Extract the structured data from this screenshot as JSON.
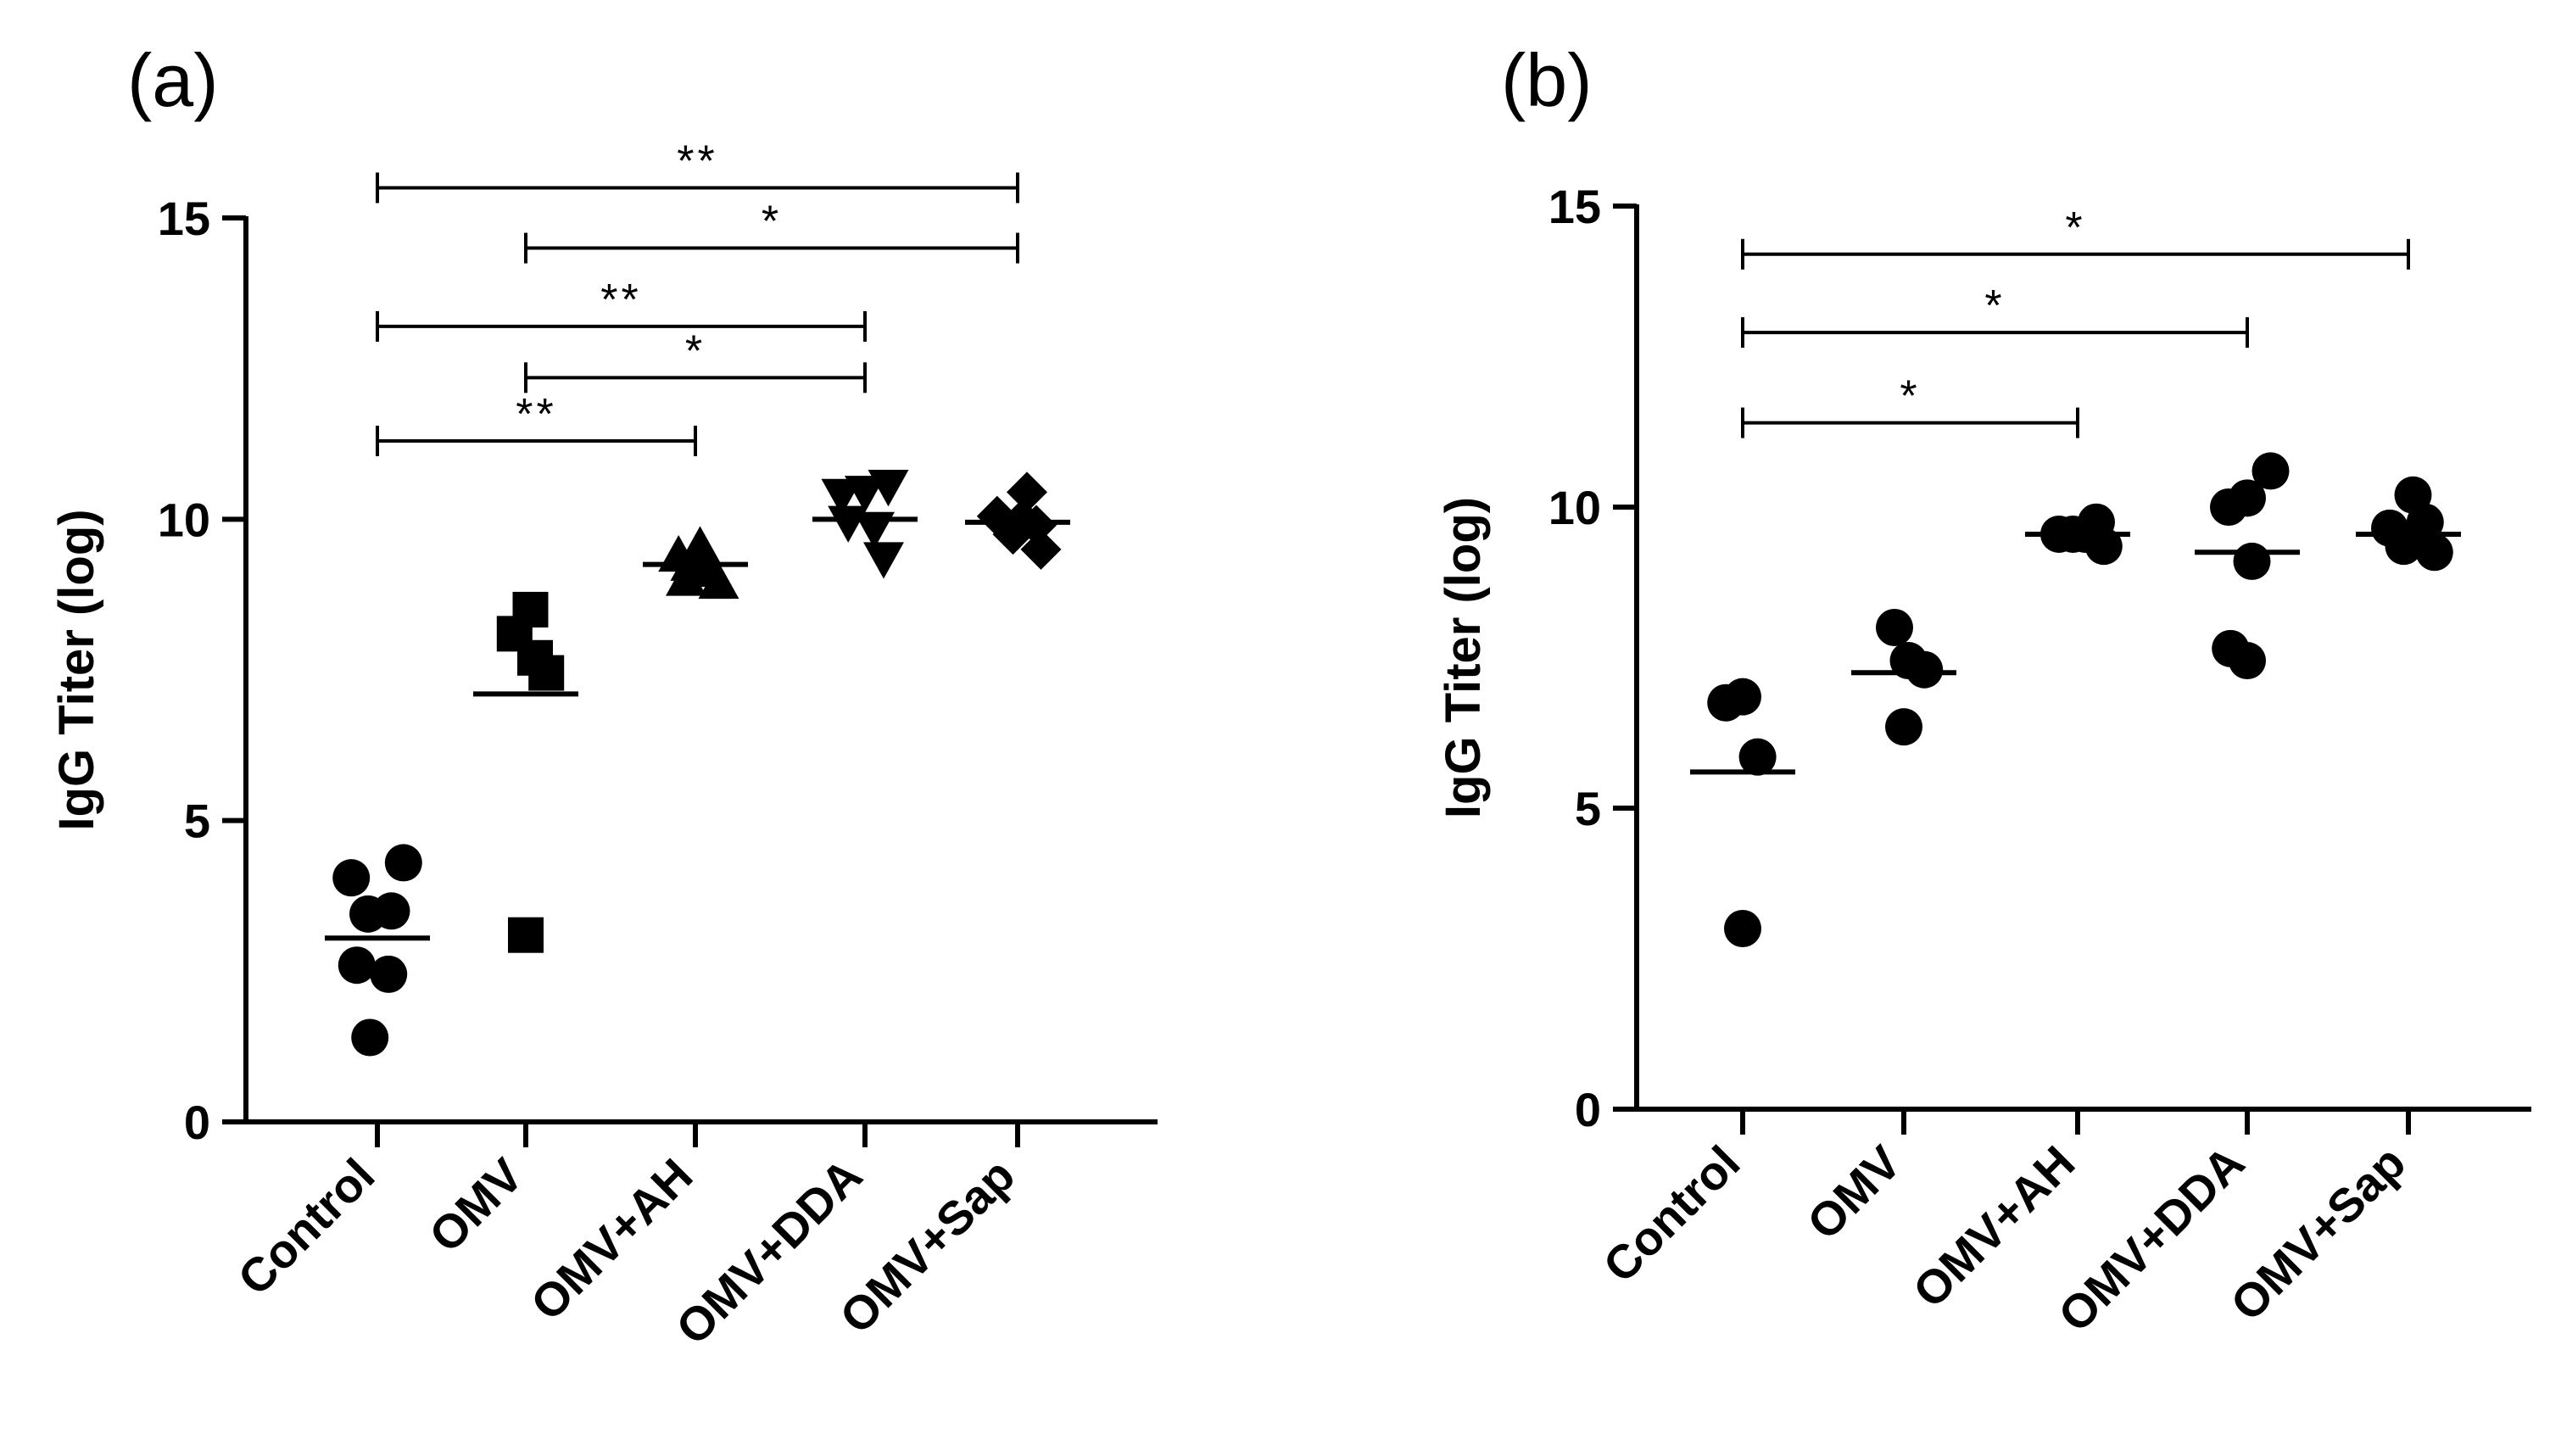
{
  "chart_data": [
    {
      "panel": "(a)",
      "type": "scatter",
      "ylabel": "IgG Titer (log)",
      "ylim": [
        0,
        15
      ],
      "yticks": [
        "0",
        "5",
        "10",
        "15"
      ],
      "categories": [
        "Control",
        "OMV",
        "OMV+AH",
        "OMV+DDA",
        "OMV+Sap"
      ],
      "groups": [
        {
          "name": "Control",
          "marker": "circle",
          "mean": 3.05,
          "points": [
            [
              -0.28,
              4.05
            ],
            [
              0.28,
              4.3
            ],
            [
              -0.1,
              3.45
            ],
            [
              0.15,
              3.5
            ],
            [
              -0.22,
              2.6
            ],
            [
              0.12,
              2.45
            ],
            [
              -0.08,
              1.4
            ]
          ]
        },
        {
          "name": "OMV",
          "marker": "square",
          "mean": 7.1,
          "points": [
            [
              -0.12,
              8.1
            ],
            [
              0.05,
              8.5
            ],
            [
              0.1,
              7.7
            ],
            [
              0.22,
              7.45
            ],
            [
              0.0,
              3.1
            ]
          ]
        },
        {
          "name": "OMV+AH",
          "marker": "triangle-up",
          "mean": 9.25,
          "points": [
            [
              -0.18,
              9.4
            ],
            [
              -0.05,
              9.25
            ],
            [
              0.05,
              9.55
            ],
            [
              0.15,
              9.15
            ],
            [
              0.25,
              8.95
            ],
            [
              -0.1,
              9.0
            ]
          ]
        },
        {
          "name": "OMV+DDA",
          "marker": "triangle-down",
          "mean": 10.0,
          "points": [
            [
              -0.25,
              10.4
            ],
            [
              0.0,
              10.45
            ],
            [
              0.25,
              10.55
            ],
            [
              -0.18,
              9.95
            ],
            [
              0.1,
              9.85
            ],
            [
              0.2,
              9.35
            ]
          ]
        },
        {
          "name": "OMV+Sap",
          "marker": "diamond",
          "mean": 9.95,
          "points": [
            [
              -0.22,
              10.05
            ],
            [
              0.1,
              10.45
            ],
            [
              0.05,
              10.0
            ],
            [
              0.2,
              9.9
            ],
            [
              -0.05,
              9.75
            ],
            [
              0.25,
              9.5
            ]
          ]
        }
      ],
      "comparisons": [
        {
          "from": "Control",
          "to": "OMV+Sap",
          "level": 15.5,
          "label": "**"
        },
        {
          "from": "OMV",
          "to": "OMV+Sap",
          "level": 14.5,
          "label": "*"
        },
        {
          "from": "Control",
          "to": "OMV+DDA",
          "level": 13.2,
          "label": "**"
        },
        {
          "from": "OMV",
          "to": "OMV+DDA",
          "level": 12.35,
          "label": "*"
        },
        {
          "from": "Control",
          "to": "OMV+AH",
          "level": 11.3,
          "label": "**"
        }
      ]
    },
    {
      "panel": "(b)",
      "type": "scatter",
      "ylabel": "IgG Titer (log)",
      "ylim": [
        0,
        15
      ],
      "yticks": [
        "0",
        "5",
        "10",
        "15"
      ],
      "categories": [
        "Control",
        "OMV",
        "OMV+AH",
        "OMV+DDA",
        "OMV+Sap"
      ],
      "groups": [
        {
          "name": "Control",
          "marker": "circle",
          "mean": 5.6,
          "points": [
            [
              -0.18,
              6.75
            ],
            [
              0.0,
              6.85
            ],
            [
              0.16,
              5.85
            ],
            [
              0.0,
              3.0
            ]
          ]
        },
        {
          "name": "OMV",
          "marker": "circle",
          "mean": 7.25,
          "points": [
            [
              -0.1,
              8.0
            ],
            [
              0.05,
              7.45
            ],
            [
              0.22,
              7.3
            ],
            [
              0.0,
              6.35
            ]
          ]
        },
        {
          "name": "OMV+AH",
          "marker": "circle",
          "mean": 9.55,
          "points": [
            [
              -0.2,
              9.55
            ],
            [
              -0.05,
              9.55
            ],
            [
              0.08,
              9.55
            ],
            [
              0.2,
              9.75
            ],
            [
              0.28,
              9.35
            ]
          ]
        },
        {
          "name": "OMV+DDA",
          "marker": "circle",
          "mean": 9.25,
          "points": [
            [
              -0.2,
              10.0
            ],
            [
              0.0,
              10.15
            ],
            [
              0.25,
              10.6
            ],
            [
              0.05,
              9.1
            ],
            [
              -0.18,
              7.65
            ],
            [
              0.0,
              7.45
            ]
          ]
        },
        {
          "name": "OMV+Sap",
          "marker": "circle",
          "mean": 9.55,
          "points": [
            [
              -0.2,
              9.65
            ],
            [
              0.05,
              10.2
            ],
            [
              0.18,
              9.75
            ],
            [
              -0.05,
              9.35
            ],
            [
              0.28,
              9.25
            ]
          ]
        }
      ],
      "comparisons": [
        {
          "from": "Control",
          "to": "OMV+Sap",
          "level": 14.2,
          "label": "*"
        },
        {
          "from": "Control",
          "to": "OMV+DDA",
          "level": 12.9,
          "label": "*"
        },
        {
          "from": "Control",
          "to": "OMV+AH",
          "level": 11.4,
          "label": "*"
        }
      ]
    }
  ]
}
